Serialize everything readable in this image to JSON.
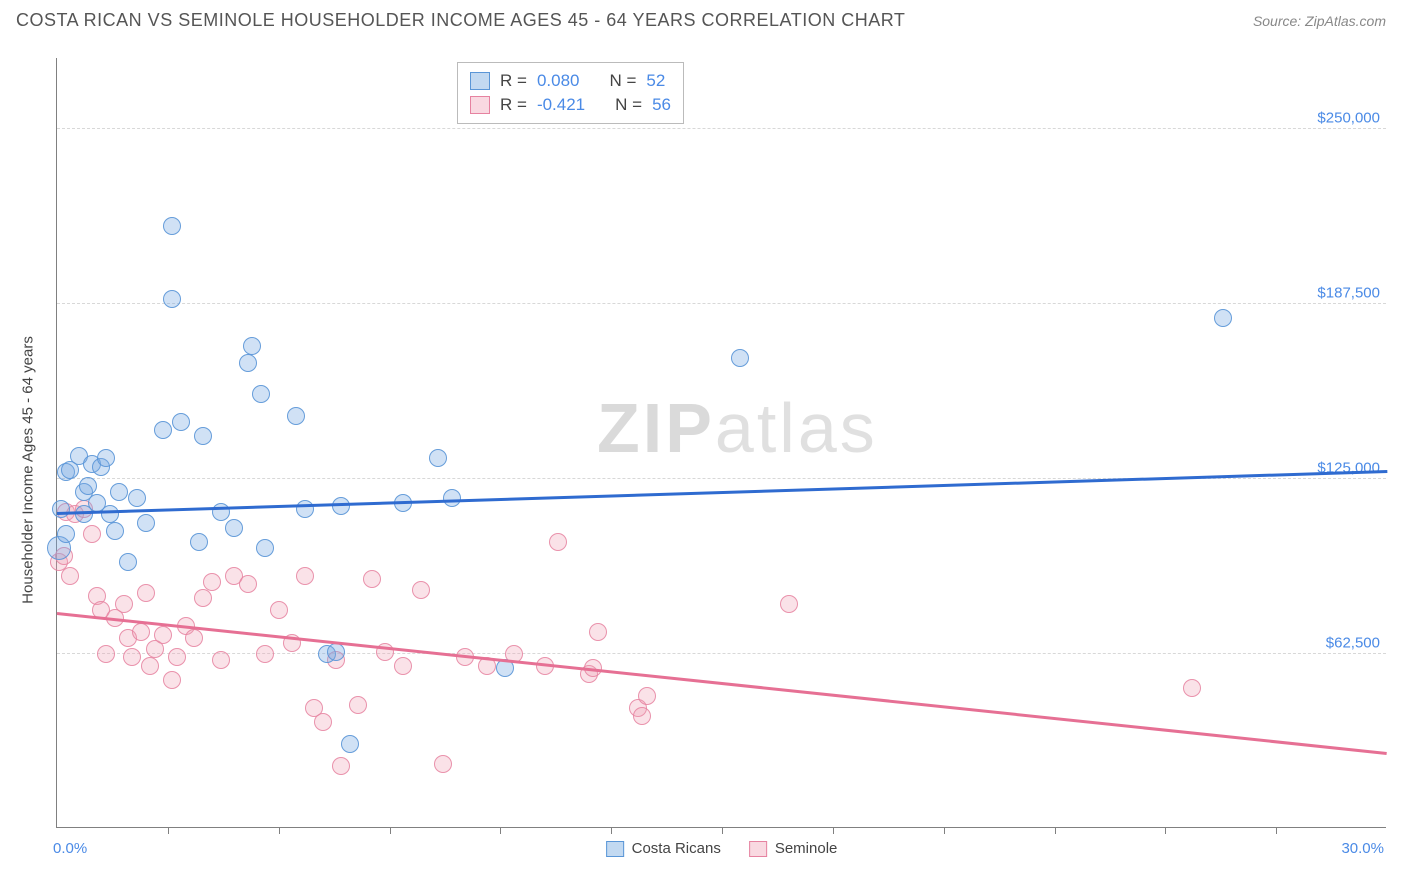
{
  "header": {
    "title": "COSTA RICAN VS SEMINOLE HOUSEHOLDER INCOME AGES 45 - 64 YEARS CORRELATION CHART",
    "source_label": "Source: ",
    "source_name": "ZipAtlas.com"
  },
  "watermark": {
    "left": "ZIP",
    "right": "atlas"
  },
  "chart": {
    "type": "scatter",
    "ylabel": "Householder Income Ages 45 - 64 years",
    "xlim": [
      0,
      30
    ],
    "ylim": [
      0,
      275000
    ],
    "x_axis_labels": {
      "min": "0.0%",
      "max": "30.0%"
    },
    "x_ticks": [
      2.5,
      5.0,
      7.5,
      10.0,
      12.5,
      15.0,
      17.5,
      20.0,
      22.5,
      25.0,
      27.5
    ],
    "y_gridlines": [
      {
        "value": 62500,
        "label": "$62,500"
      },
      {
        "value": 125000,
        "label": "$125,000"
      },
      {
        "value": 187500,
        "label": "$187,500"
      },
      {
        "value": 250000,
        "label": "$250,000"
      }
    ],
    "background_color": "#ffffff",
    "grid_color": "#d8d8d8",
    "axis_color": "#808080",
    "point_radius": 9,
    "legend_stats": {
      "rows": [
        {
          "series": "blue",
          "r_label": "R =",
          "r": "0.080",
          "n_label": "N =",
          "n": "52"
        },
        {
          "series": "pink",
          "r_label": "R =",
          "r": "-0.421",
          "n_label": "N =",
          "n": "56"
        }
      ]
    },
    "legend_bottom": [
      {
        "series": "blue",
        "label": "Costa Ricans"
      },
      {
        "series": "pink",
        "label": "Seminole"
      }
    ],
    "series": {
      "blue": {
        "label": "Costa Ricans",
        "fill": "rgba(120,170,225,0.35)",
        "stroke": "#5a96d7",
        "trend_color": "#2f6bd0",
        "trend": {
          "x1": 0,
          "y1": 113000,
          "x2": 30,
          "y2": 128000
        },
        "points": [
          [
            0.1,
            114000
          ],
          [
            0.05,
            100000,
            12
          ],
          [
            0.2,
            105000
          ],
          [
            0.2,
            127000
          ],
          [
            0.3,
            128000
          ],
          [
            0.5,
            133000
          ],
          [
            0.6,
            120000
          ],
          [
            0.6,
            112000
          ],
          [
            0.7,
            122000
          ],
          [
            0.8,
            130000
          ],
          [
            0.9,
            116000
          ],
          [
            1.0,
            129000
          ],
          [
            1.1,
            132000
          ],
          [
            1.2,
            112000
          ],
          [
            1.3,
            106000
          ],
          [
            1.4,
            120000
          ],
          [
            1.6,
            95000
          ],
          [
            1.8,
            118000
          ],
          [
            2.0,
            109000
          ],
          [
            2.4,
            142000
          ],
          [
            2.6,
            215000
          ],
          [
            2.6,
            189000
          ],
          [
            2.8,
            145000
          ],
          [
            3.2,
            102000
          ],
          [
            3.3,
            140000
          ],
          [
            3.7,
            113000
          ],
          [
            4.0,
            107000
          ],
          [
            4.3,
            166000
          ],
          [
            4.4,
            172000
          ],
          [
            4.6,
            155000
          ],
          [
            4.7,
            100000
          ],
          [
            5.4,
            147000
          ],
          [
            5.6,
            114000
          ],
          [
            6.1,
            62000
          ],
          [
            6.3,
            63000
          ],
          [
            6.4,
            115000
          ],
          [
            6.6,
            30000
          ],
          [
            7.8,
            116000
          ],
          [
            8.6,
            132000
          ],
          [
            8.9,
            118000
          ],
          [
            10.1,
            57000
          ],
          [
            15.4,
            168000
          ],
          [
            26.3,
            182000
          ]
        ]
      },
      "pink": {
        "label": "Seminole",
        "fill": "rgba(240,160,180,0.30)",
        "stroke": "#e682a0",
        "trend_color": "#e67094",
        "trend": {
          "x1": 0,
          "y1": 77000,
          "x2": 30,
          "y2": 27000
        },
        "points": [
          [
            0.05,
            95000
          ],
          [
            0.15,
            97000
          ],
          [
            0.2,
            113000
          ],
          [
            0.3,
            90000
          ],
          [
            0.4,
            112000
          ],
          [
            0.6,
            114000
          ],
          [
            0.8,
            105000
          ],
          [
            0.9,
            83000
          ],
          [
            1.0,
            78000
          ],
          [
            1.1,
            62000
          ],
          [
            1.3,
            75000
          ],
          [
            1.5,
            80000
          ],
          [
            1.6,
            68000
          ],
          [
            1.7,
            61000
          ],
          [
            1.9,
            70000
          ],
          [
            2.0,
            84000
          ],
          [
            2.1,
            58000
          ],
          [
            2.2,
            64000
          ],
          [
            2.4,
            69000
          ],
          [
            2.6,
            53000
          ],
          [
            2.7,
            61000
          ],
          [
            2.9,
            72000
          ],
          [
            3.1,
            68000
          ],
          [
            3.3,
            82000
          ],
          [
            3.5,
            88000
          ],
          [
            3.7,
            60000
          ],
          [
            4.0,
            90000
          ],
          [
            4.3,
            87000
          ],
          [
            4.7,
            62000
          ],
          [
            5.0,
            78000
          ],
          [
            5.3,
            66000
          ],
          [
            5.6,
            90000
          ],
          [
            5.8,
            43000
          ],
          [
            6.0,
            38000
          ],
          [
            6.3,
            60000
          ],
          [
            6.4,
            22000
          ],
          [
            6.8,
            44000
          ],
          [
            7.1,
            89000
          ],
          [
            7.4,
            63000
          ],
          [
            7.8,
            58000
          ],
          [
            8.2,
            85000
          ],
          [
            8.7,
            23000
          ],
          [
            9.2,
            61000
          ],
          [
            9.7,
            58000
          ],
          [
            10.3,
            62000
          ],
          [
            11.0,
            58000
          ],
          [
            11.3,
            102000
          ],
          [
            12.0,
            55000
          ],
          [
            12.1,
            57000
          ],
          [
            12.2,
            70000
          ],
          [
            13.1,
            43000
          ],
          [
            13.2,
            40000
          ],
          [
            13.3,
            47000
          ],
          [
            16.5,
            80000
          ],
          [
            25.6,
            50000
          ]
        ]
      }
    }
  }
}
